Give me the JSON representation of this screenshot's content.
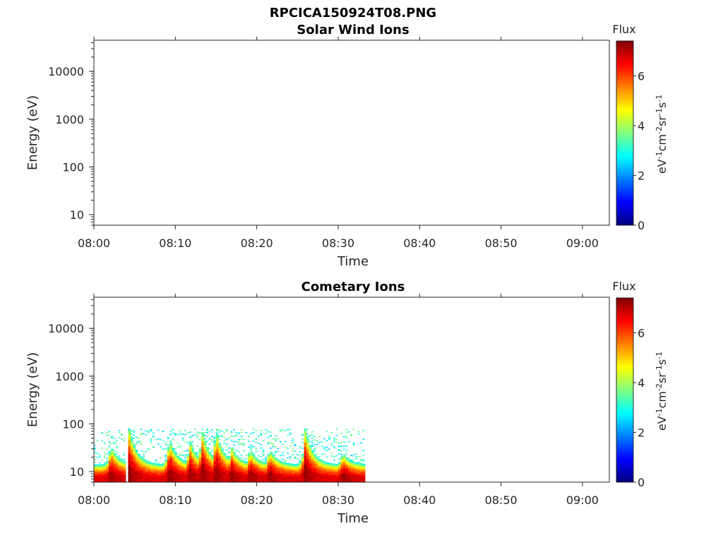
{
  "figure": {
    "title": "RPCICA150924T08.PNG"
  },
  "colormap": {
    "name": "jet",
    "stops": [
      "#00007f",
      "#0000ff",
      "#007fff",
      "#00ffff",
      "#7fff7f",
      "#ffff00",
      "#ff7f00",
      "#ff0000",
      "#7f0000"
    ]
  },
  "chart_data": [
    {
      "type": "heatmap",
      "title": "Solar Wind Ions",
      "xlabel": "Time",
      "ylabel": "Energy (eV)",
      "x_ticks": [
        "08:00",
        "08:10",
        "08:20",
        "08:30",
        "08:40",
        "08:50",
        "09:00"
      ],
      "x_range_minutes": [
        0,
        63.3
      ],
      "y_ticks": [
        "10",
        "100",
        "1000",
        "10000"
      ],
      "y_scale": "log",
      "y_range": [
        6,
        45000
      ],
      "colorbar": {
        "label": "Flux",
        "unit": "eV-1cm-2sr-1s-1",
        "ticks": [
          "0",
          "2",
          "4",
          "6"
        ],
        "range": [
          0,
          7.4
        ]
      },
      "segments": []
    },
    {
      "type": "heatmap",
      "title": "Cometary Ions",
      "xlabel": "Time",
      "ylabel": "Energy (eV)",
      "x_ticks": [
        "08:00",
        "08:10",
        "08:20",
        "08:30",
        "08:40",
        "08:50",
        "09:00"
      ],
      "x_range_minutes": [
        0,
        63.3
      ],
      "y_ticks": [
        "10",
        "100",
        "1000",
        "10000"
      ],
      "y_scale": "log",
      "y_range": [
        6,
        45000
      ],
      "colorbar": {
        "label": "Flux",
        "unit": "eV-1cm-2sr-1s-1",
        "ticks": [
          "0",
          "2",
          "4",
          "6"
        ],
        "range": [
          0,
          7.4
        ]
      },
      "data_span_minutes": [
        0,
        33.2
      ],
      "baseline_top_energy_eV": 14,
      "gap_minutes": [
        3.6,
        4.0
      ],
      "peaks": [
        {
          "time_min": 1.9,
          "top_energy_eV": 35
        },
        {
          "time_min": 4.2,
          "top_energy_eV": 78
        },
        {
          "time_min": 9.1,
          "top_energy_eV": 50
        },
        {
          "time_min": 11.6,
          "top_energy_eV": 45
        },
        {
          "time_min": 13.1,
          "top_energy_eV": 78
        },
        {
          "time_min": 14.8,
          "top_energy_eV": 78
        },
        {
          "time_min": 16.7,
          "top_energy_eV": 35
        },
        {
          "time_min": 19.0,
          "top_energy_eV": 30
        },
        {
          "time_min": 21.4,
          "top_energy_eV": 30
        },
        {
          "time_min": 25.8,
          "top_energy_eV": 78
        },
        {
          "time_min": 30.4,
          "top_energy_eV": 25
        }
      ],
      "noise_top_energy_eV": 80
    }
  ]
}
